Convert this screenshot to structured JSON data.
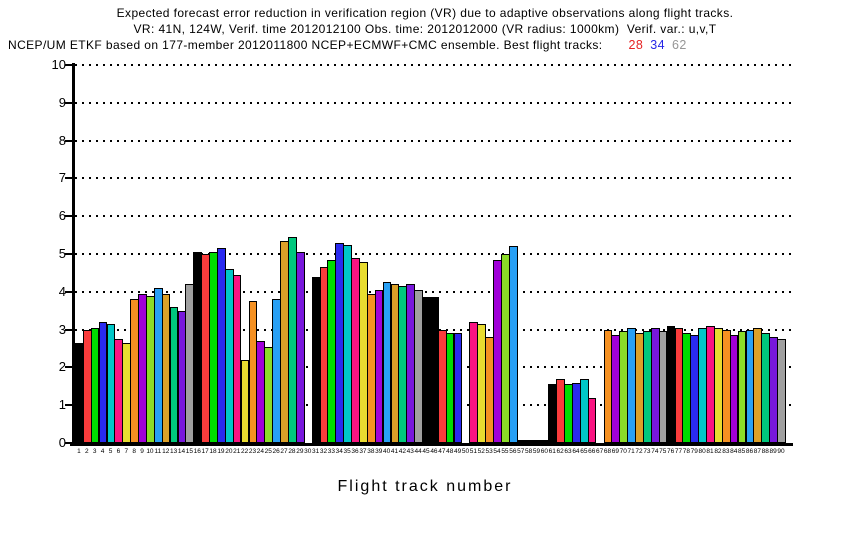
{
  "header": {
    "line1": "Expected forecast error reduction in verification region (VR) due to adaptive observations along flight tracks.",
    "line2": "VR: 41N, 124W, Verif. time 2012012100 Obs. time: 2012012000 (VR radius: 1000km)  Verif. var.: u,v,T",
    "line3_prefix": "NCEP/UM ETKF based on 177-member 2012011800 NCEP+ECMWF+CMC ensemble. Best flight tracks:",
    "best_tracks": [
      {
        "label": "28",
        "color": "#e62222"
      },
      {
        "label": "34",
        "color": "#2626e6"
      },
      {
        "label": "62",
        "color": "#969696"
      }
    ]
  },
  "chart_data": {
    "type": "bar",
    "title": "Expected forecast error reduction in VR due to adaptive observations along flight tracks",
    "xlabel": "Flight track number",
    "ylabel": "",
    "ylim": [
      0,
      10
    ],
    "yticks": [
      0,
      1,
      2,
      3,
      4,
      5,
      6,
      7,
      8,
      9,
      10
    ],
    "grid": "dotted horizontal at each integer",
    "legend": "none",
    "palette": {
      "black": "#000000",
      "red": "#fa3c3c",
      "green": "#00dd00",
      "blue": "#2a2af0",
      "cyan": "#00c8c8",
      "magenta": "#fa1482",
      "yellow": "#e8dc30",
      "orange": "#f59122",
      "purple": "#a000d8",
      "ygreen": "#8cdc28",
      "dodger": "#28a0f5",
      "gold": "#dca028",
      "spring": "#00c87d",
      "violet": "#7818dc",
      "gray": "#a0a0a0"
    },
    "bars": [
      [
        1,
        "black",
        2.65
      ],
      [
        2,
        "red",
        3.0
      ],
      [
        3,
        "green",
        3.05
      ],
      [
        4,
        "blue",
        3.2
      ],
      [
        5,
        "cyan",
        3.15
      ],
      [
        6,
        "magenta",
        2.75
      ],
      [
        7,
        "yellow",
        2.65
      ],
      [
        8,
        "orange",
        3.8
      ],
      [
        9,
        "purple",
        3.95
      ],
      [
        10,
        "ygreen",
        3.9
      ],
      [
        11,
        "dodger",
        4.1
      ],
      [
        12,
        "gold",
        3.95
      ],
      [
        13,
        "spring",
        3.6
      ],
      [
        14,
        "violet",
        3.5
      ],
      [
        15,
        "gray",
        4.2
      ],
      [
        16,
        "black",
        5.05
      ],
      [
        17,
        "red",
        5.0
      ],
      [
        18,
        "green",
        5.05
      ],
      [
        19,
        "blue",
        5.15
      ],
      [
        20,
        "cyan",
        4.6
      ],
      [
        21,
        "magenta",
        4.45
      ],
      [
        22,
        "yellow",
        2.2
      ],
      [
        23,
        "orange",
        3.75
      ],
      [
        24,
        "purple",
        2.7
      ],
      [
        25,
        "ygreen",
        2.55
      ],
      [
        26,
        "dodger",
        3.8
      ],
      [
        27,
        "gold",
        5.35
      ],
      [
        28,
        "spring",
        5.45
      ],
      [
        29,
        "violet",
        5.05
      ],
      [
        30,
        "none",
        0
      ],
      [
        31,
        "black",
        4.4
      ],
      [
        32,
        "red",
        4.65
      ],
      [
        33,
        "green",
        4.85
      ],
      [
        34,
        "blue",
        5.3
      ],
      [
        35,
        "cyan",
        5.25
      ],
      [
        36,
        "magenta",
        4.9
      ],
      [
        37,
        "yellow",
        4.8
      ],
      [
        38,
        "orange",
        3.95
      ],
      [
        39,
        "purple",
        4.05
      ],
      [
        40,
        "dodger",
        4.25
      ],
      [
        41,
        "gold",
        4.2
      ],
      [
        42,
        "spring",
        4.15
      ],
      [
        43,
        "violet",
        4.2
      ],
      [
        44,
        "gray",
        4.05
      ],
      [
        45,
        "black",
        3.85
      ],
      [
        46,
        "black",
        3.85
      ],
      [
        47,
        "red",
        3.0
      ],
      [
        48,
        "green",
        2.9
      ],
      [
        49,
        "blue",
        2.9
      ],
      [
        50,
        "none",
        0
      ],
      [
        51,
        "magenta",
        3.2
      ],
      [
        52,
        "yellow",
        3.15
      ],
      [
        53,
        "orange",
        2.8
      ],
      [
        54,
        "purple",
        4.85
      ],
      [
        55,
        "ygreen",
        5.0
      ],
      [
        56,
        "dodger",
        5.2
      ],
      [
        57,
        "black",
        0.07
      ],
      [
        58,
        "black",
        0.07
      ],
      [
        59,
        "black",
        0.07
      ],
      [
        60,
        "black",
        0.07
      ],
      [
        61,
        "black",
        1.55
      ],
      [
        62,
        "red",
        1.7
      ],
      [
        63,
        "green",
        1.55
      ],
      [
        64,
        "blue",
        1.6
      ],
      [
        65,
        "cyan",
        1.7
      ],
      [
        66,
        "magenta",
        1.2
      ],
      [
        67,
        "none",
        0
      ],
      [
        68,
        "orange",
        3.0
      ],
      [
        69,
        "purple",
        2.85
      ],
      [
        70,
        "ygreen",
        2.95
      ],
      [
        71,
        "dodger",
        3.05
      ],
      [
        72,
        "gold",
        2.9
      ],
      [
        73,
        "spring",
        2.95
      ],
      [
        74,
        "violet",
        3.05
      ],
      [
        75,
        "gray",
        2.95
      ],
      [
        76,
        "black",
        3.1
      ],
      [
        77,
        "red",
        3.05
      ],
      [
        78,
        "green",
        2.9
      ],
      [
        79,
        "blue",
        2.85
      ],
      [
        80,
        "cyan",
        3.05
      ],
      [
        81,
        "magenta",
        3.1
      ],
      [
        82,
        "yellow",
        3.05
      ],
      [
        83,
        "orange",
        3.0
      ],
      [
        84,
        "purple",
        2.85
      ],
      [
        85,
        "ygreen",
        2.95
      ],
      [
        86,
        "dodger",
        3.0
      ],
      [
        87,
        "gold",
        3.05
      ],
      [
        88,
        "spring",
        2.9
      ],
      [
        89,
        "violet",
        2.8
      ],
      [
        90,
        "gray",
        2.75
      ]
    ]
  }
}
